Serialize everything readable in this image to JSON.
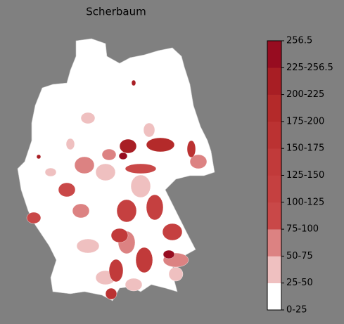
{
  "map": {
    "title": "Scherbaum",
    "legend": {
      "labels": [
        "0-25",
        "25-50",
        "50-75",
        "75-100",
        "100-125",
        "125-150",
        "150-175",
        "175-200",
        "200-225",
        "225-256.5",
        "256.5"
      ],
      "colors": [
        "#ffffff",
        "#efc0c0",
        "#dc8282",
        "#c94848",
        "#c54040",
        "#c13a3a",
        "#bb3232",
        "#b42a2a",
        "#a81e24",
        "#970c20"
      ]
    }
  }
}
